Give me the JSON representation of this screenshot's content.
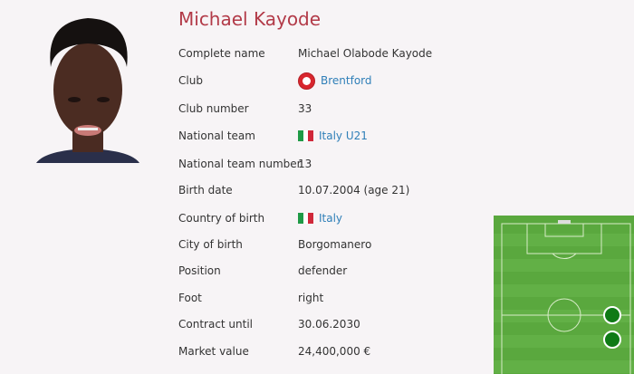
{
  "player": {
    "name": "Michael Kayode"
  },
  "details": [
    {
      "label": "Complete name",
      "value": "Michael Olabode Kayode"
    },
    {
      "label": "Club",
      "value": "Brentford",
      "link": true,
      "icon": "brentford-crest-icon"
    },
    {
      "label": "Club number",
      "value": "33"
    },
    {
      "label": "National team",
      "value": "Italy U21",
      "link": true,
      "icon": "italy-flag-icon"
    },
    {
      "label": "National team number",
      "value": "13"
    },
    {
      "label": "Birth date",
      "value": "10.07.2004 (age 21)"
    },
    {
      "label": "Country of birth",
      "value": "Italy",
      "link": true,
      "icon": "italy-flag-icon"
    },
    {
      "label": "City of birth",
      "value": "Borgomanero"
    },
    {
      "label": "Position",
      "value": "defender"
    },
    {
      "label": "Foot",
      "value": "right"
    },
    {
      "label": "Contract until",
      "value": "30.06.2030"
    },
    {
      "label": "Market value",
      "value": "24,400,000 €"
    }
  ],
  "colors": {
    "title": "#b23a48",
    "link": "#2f7fb8",
    "pitch": "#5aa83e",
    "marker": "#0f7a16"
  }
}
